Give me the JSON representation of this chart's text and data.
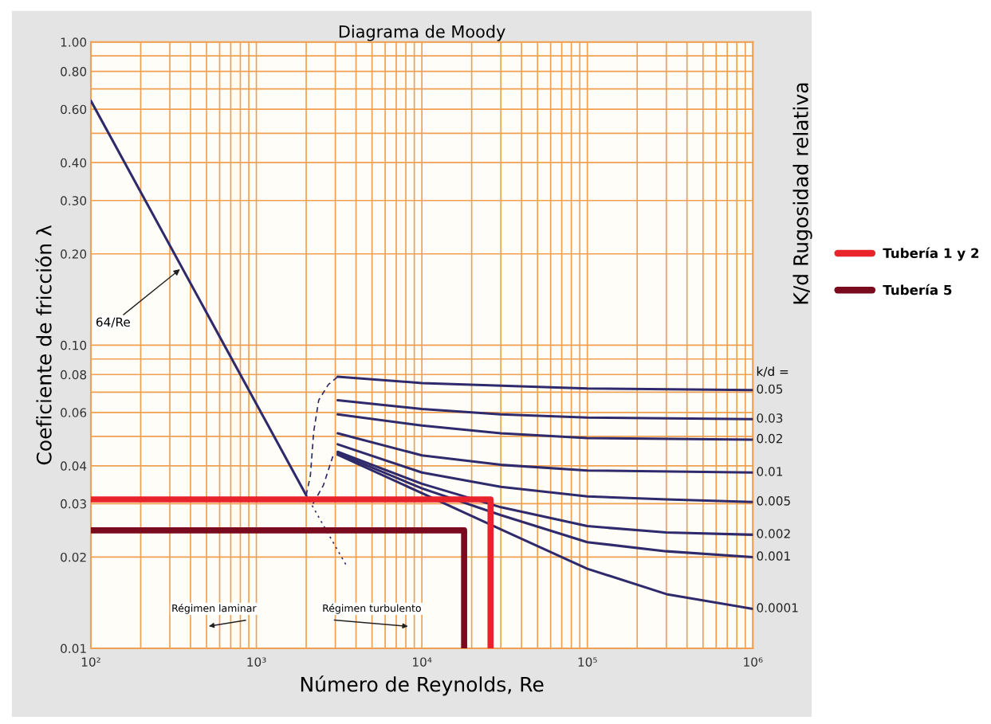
{
  "chart_data": {
    "type": "line",
    "title": "Diagrama de Moody",
    "xlabel": "Número de Reynolds, Re",
    "ylabel": "Coeficiente de fricción λ",
    "y2label": "K/d Rugosidad relativa",
    "log": "xy",
    "grid": true,
    "legend": "right",
    "line_style": "solid",
    "marker": "none",
    "xlim": [
      100,
      1000000
    ],
    "ylim": [
      0.01,
      1
    ],
    "xticks": [
      {
        "value": 100,
        "label": "10²"
      },
      {
        "value": 1000,
        "label": "10³"
      },
      {
        "value": 10000,
        "label": "10⁴"
      },
      {
        "value": 100000,
        "label": "10⁵"
      },
      {
        "value": 1000000,
        "label": "10⁶"
      }
    ],
    "yticks": [
      0.01,
      0.02,
      0.03,
      0.04,
      0.06,
      0.08,
      {
        "value": 0.1,
        "label": "0.10"
      },
      {
        "value": 0.2,
        "label": "0.20"
      },
      {
        "value": 0.3,
        "label": "0.30"
      },
      {
        "value": 0.4,
        "label": "0.40"
      },
      {
        "value": 0.6,
        "label": "0.60"
      },
      {
        "value": 0.8,
        "label": "0.80"
      },
      {
        "value": 1,
        "label": "1.00"
      }
    ],
    "series": [
      {
        "color": "#2e2a6b",
        "x": [
          100,
          2000
        ],
        "values": [
          0.64,
          0.032
        ]
      },
      {
        "color": "#2e2a6b",
        "line_style": "dotted",
        "x": [
          2000,
          3550
        ],
        "values": [
          0.032,
          0.0185
        ]
      },
      {
        "color": "#2e2a6b",
        "line_style": "dashed",
        "x": [
          2000,
          2120,
          2220,
          2380,
          2720,
          3100
        ],
        "values": [
          0.032,
          0.0371,
          0.0518,
          0.0658,
          0.0741,
          0.0787
        ]
      },
      {
        "color": "#2e2a6b",
        "line_style": "dashed",
        "x": [
          2200,
          2540,
          2900
        ],
        "values": [
          0.03,
          0.0345,
          0.043
        ]
      },
      {
        "name": "0.05",
        "color": "#2e2a6b",
        "x": [
          3100,
          10000,
          100000,
          1000000
        ],
        "values": [
          0.0787,
          0.075,
          0.072,
          0.0711
        ]
      },
      {
        "name": "0.03",
        "color": "#2e2a6b",
        "x": [
          3100,
          10000,
          30000,
          100000,
          1000000
        ],
        "values": [
          0.0658,
          0.0616,
          0.0591,
          0.0577,
          0.057
        ]
      },
      {
        "name": "0.02",
        "color": "#2e2a6b",
        "x": [
          3100,
          10000,
          30000,
          100000,
          1000000
        ],
        "values": [
          0.0591,
          0.0543,
          0.0512,
          0.0494,
          0.0488
        ]
      },
      {
        "name": "0.01",
        "color": "#2e2a6b",
        "x": [
          3100,
          10000,
          30000,
          100000,
          1000000
        ],
        "values": [
          0.0512,
          0.0433,
          0.0403,
          0.0386,
          0.038
        ]
      },
      {
        "name": "0.005",
        "color": "#2e2a6b",
        "x": [
          3100,
          10000,
          30000,
          100000,
          300000,
          1000000
        ],
        "values": [
          0.0471,
          0.038,
          0.0341,
          0.0317,
          0.031,
          0.0304
        ]
      },
      {
        "name": "0.002",
        "color": "#2e2a6b",
        "x": [
          3100,
          10000,
          30000,
          100000,
          300000,
          1000000
        ],
        "values": [
          0.0445,
          0.0349,
          0.0292,
          0.0253,
          0.0241,
          0.0237
        ]
      },
      {
        "name": "0.001",
        "color": "#2e2a6b",
        "x": [
          3100,
          10000,
          30000,
          100000,
          300000,
          1000000
        ],
        "values": [
          0.044,
          0.0337,
          0.0275,
          0.0224,
          0.0209,
          0.02
        ]
      },
      {
        "name": "0.0001",
        "color": "#2e2a6b",
        "x": [
          3100,
          10000,
          30000,
          100000,
          300000,
          1000000
        ],
        "values": [
          0.0435,
          0.0325,
          0.0247,
          0.0183,
          0.0151,
          0.0135
        ]
      },
      {
        "name": "Tubería 1 y 2",
        "color": "#e8232b",
        "x": [
          100,
          26000,
          26000
        ],
        "values": [
          0.031,
          0.031,
          0.01
        ]
      },
      {
        "name": "Tubería 5",
        "color": "#7a0a1e",
        "x": [
          100,
          18000,
          18000
        ],
        "values": [
          0.0245,
          0.0245,
          0.01
        ]
      }
    ],
    "annotations": [
      {
        "text": "64/Re",
        "x": 354,
        "y": 0.18
      },
      "k/d =",
      "Régimen laminar",
      "Régimen turbulento"
    ]
  }
}
